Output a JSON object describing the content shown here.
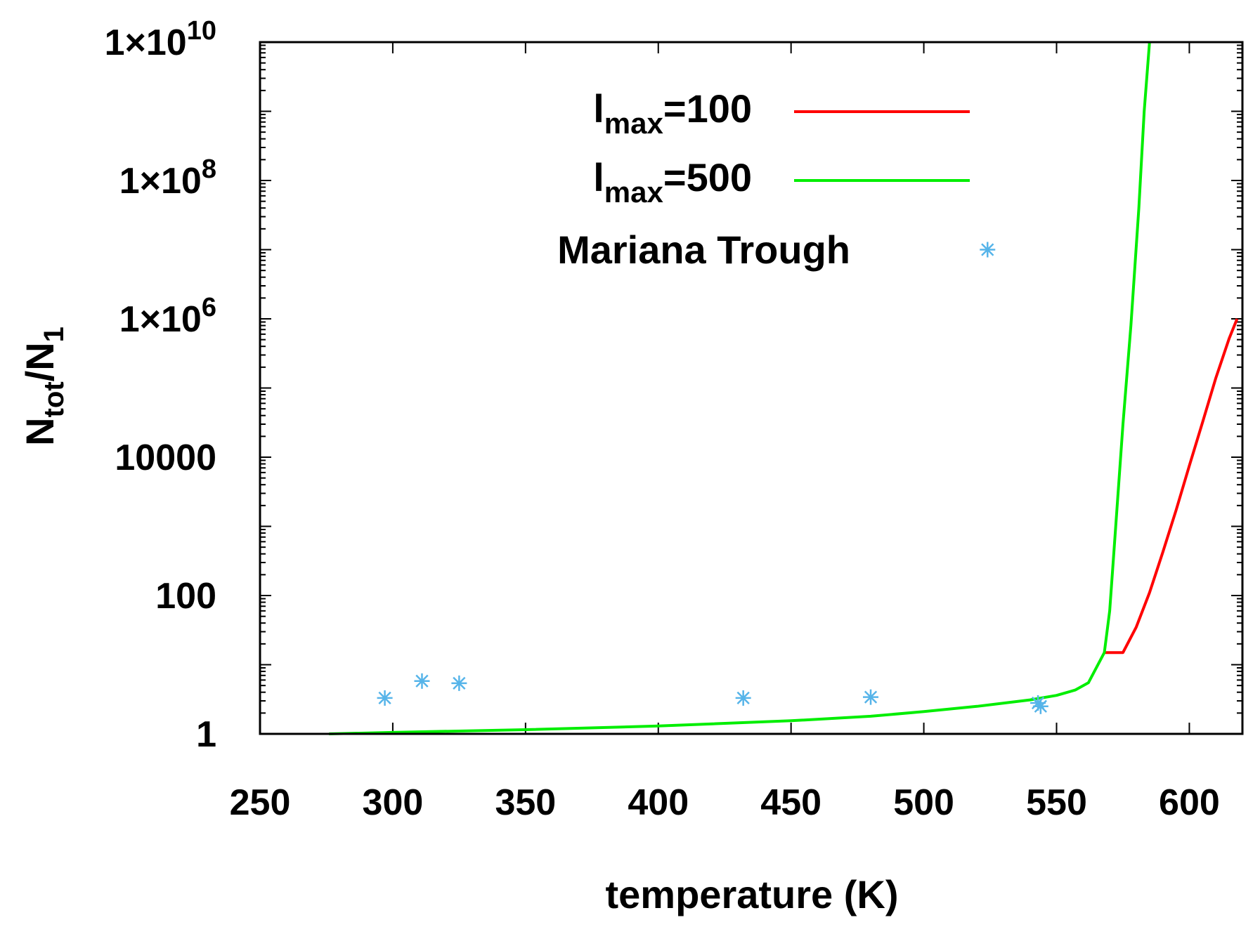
{
  "chart_data": {
    "type": "line",
    "xlabel": "temperature (K)",
    "ylabel": {
      "base": "N",
      "sub1": "tot",
      "slash": "/N",
      "sub2": "1"
    },
    "xlim": [
      250,
      620
    ],
    "ylim": [
      1,
      10000000000
    ],
    "yscale": "log",
    "xticks": [
      250,
      300,
      350,
      400,
      450,
      500,
      550,
      600
    ],
    "yticks": [
      {
        "value": 1,
        "label": "1"
      },
      {
        "value": 100,
        "label": "100"
      },
      {
        "value": 10000,
        "label": "10000"
      },
      {
        "value": 1000000,
        "base": "1×10",
        "exp": "6"
      },
      {
        "value": 100000000,
        "base": "1×10",
        "exp": "8"
      },
      {
        "value": 10000000000,
        "base": "1×10",
        "exp": "10"
      }
    ],
    "legend_position": "top-center",
    "series": [
      {
        "name": "l_max=100",
        "legend": {
          "base": "l",
          "sub": "max",
          "rest": "=100"
        },
        "color": "#ff0000",
        "style": "line",
        "x": [
          568,
          570,
          575,
          580,
          585,
          590,
          595,
          600,
          605,
          610,
          615,
          618
        ],
        "y": [
          15,
          15,
          15,
          35,
          110,
          420,
          1700,
          7500,
          32000,
          140000,
          520000,
          1000000
        ]
      },
      {
        "name": "l_max=500",
        "legend": {
          "base": "l",
          "sub": "max",
          "rest": "=500"
        },
        "color": "#00ee00",
        "style": "line",
        "x": [
          276,
          300,
          350,
          400,
          450,
          480,
          500,
          520,
          540,
          550,
          557,
          562,
          568,
          570,
          572,
          575,
          578,
          581,
          583,
          585
        ],
        "y": [
          1.0,
          1.05,
          1.15,
          1.3,
          1.55,
          1.8,
          2.1,
          2.5,
          3.1,
          3.6,
          4.3,
          5.5,
          15,
          60,
          700,
          30000,
          800000,
          40000000,
          1000000000,
          10000000000
        ]
      },
      {
        "name": "Mariana Trough",
        "legend": {
          "text": "Mariana Trough"
        },
        "color": "#56b4e9",
        "style": "points",
        "marker": "asterisk",
        "x": [
          297,
          311,
          325,
          432,
          480,
          543,
          544,
          524
        ],
        "y": [
          3.3,
          5.8,
          5.4,
          3.3,
          3.4,
          2.8,
          2.5,
          10000000
        ]
      }
    ]
  }
}
